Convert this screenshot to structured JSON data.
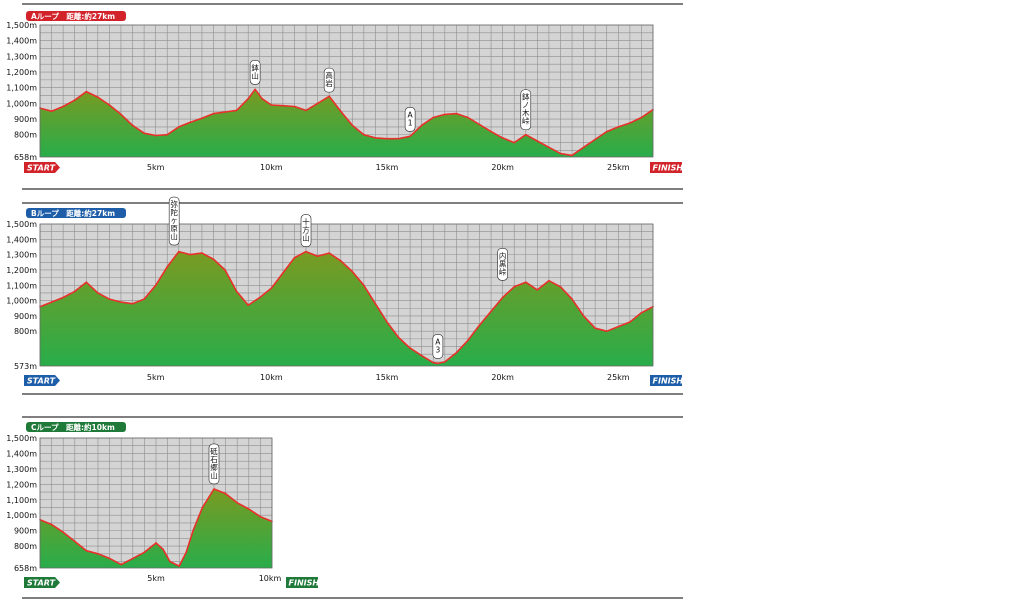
{
  "colors": {
    "loop_a": "#d2232a",
    "loop_b": "#1e5ea8",
    "loop_c": "#1f7a3a",
    "profile_line": "#e8312a",
    "fill_top": "#7a9a22",
    "fill_bottom": "#28ad4a",
    "plot_background": "#d4d4d4"
  },
  "chart_data": [
    {
      "type": "area",
      "title": "Aループ　距離:約27km",
      "xlabel": "",
      "ylabel": "",
      "xlim": [
        0,
        26.5
      ],
      "ylim": [
        658,
        1500
      ],
      "x_tick_labels": [
        "5km",
        "10km",
        "15km",
        "20km",
        "25km"
      ],
      "x_tick_values": [
        5,
        10,
        15,
        20,
        25
      ],
      "y_tick_labels": [
        "1,500m",
        "1,400m",
        "1,300m",
        "1,200m",
        "1,100m",
        "1,000m",
        "900m",
        "800m",
        "658m"
      ],
      "y_tick_values": [
        1500,
        1400,
        1300,
        1200,
        1100,
        1000,
        900,
        800,
        658
      ],
      "start_label": "START",
      "finish_label": "FINISH",
      "annotations": [
        {
          "text": "鉢山",
          "x": 9.3,
          "y": 1090
        },
        {
          "text": "高岩",
          "x": 12.5,
          "y": 1040
        },
        {
          "text": "A1",
          "x": 16.0,
          "y": 790
        },
        {
          "text": "鉢ノ木峠",
          "x": 21.0,
          "y": 800
        }
      ],
      "x": [
        0,
        0.5,
        1,
        1.5,
        2,
        2.5,
        3,
        3.5,
        4,
        4.5,
        5,
        5.5,
        6,
        6.5,
        7,
        7.5,
        8,
        8.5,
        9,
        9.3,
        9.6,
        10,
        10.5,
        11,
        11.5,
        12,
        12.5,
        13,
        13.5,
        14,
        14.5,
        15,
        15.5,
        16,
        16.5,
        17,
        17.5,
        18,
        18.5,
        19,
        19.5,
        20,
        20.5,
        21,
        21.5,
        22,
        22.5,
        23,
        23.5,
        24,
        24.5,
        25,
        25.5,
        26,
        26.5
      ],
      "values": [
        970,
        950,
        980,
        1020,
        1075,
        1040,
        990,
        930,
        860,
        810,
        795,
        800,
        850,
        880,
        905,
        935,
        945,
        955,
        1030,
        1090,
        1030,
        990,
        985,
        980,
        955,
        1000,
        1045,
        950,
        860,
        800,
        780,
        775,
        775,
        790,
        860,
        910,
        930,
        935,
        910,
        865,
        820,
        780,
        750,
        800,
        760,
        720,
        680,
        668,
        720,
        770,
        820,
        850,
        875,
        910,
        960
      ]
    },
    {
      "type": "area",
      "title": "Bループ　距離:約27km",
      "xlabel": "",
      "ylabel": "",
      "xlim": [
        0,
        26.5
      ],
      "ylim": [
        573,
        1500
      ],
      "x_tick_labels": [
        "5km",
        "10km",
        "15km",
        "20km",
        "25km"
      ],
      "x_tick_values": [
        5,
        10,
        15,
        20,
        25
      ],
      "y_tick_labels": [
        "1,500m",
        "1,400m",
        "1,300m",
        "1,200m",
        "1,100m",
        "1,000m",
        "900m",
        "800m",
        "573m"
      ],
      "y_tick_values": [
        1500,
        1400,
        1300,
        1200,
        1100,
        1000,
        900,
        800,
        573
      ],
      "start_label": "START",
      "finish_label": "FINISH",
      "annotations": [
        {
          "text": "弥陀ヶ原山",
          "x": 5.8,
          "y": 1330
        },
        {
          "text": "十方山",
          "x": 11.5,
          "y": 1320
        },
        {
          "text": "A3",
          "x": 17.2,
          "y": 590
        },
        {
          "text": "内黒峠",
          "x": 20.0,
          "y": 1100
        }
      ],
      "x": [
        0,
        0.5,
        1,
        1.5,
        2,
        2.5,
        3,
        3.5,
        4,
        4.5,
        5,
        5.5,
        6,
        6.5,
        7,
        7.5,
        8,
        8.5,
        9,
        9.5,
        10,
        10.5,
        11,
        11.5,
        12,
        12.5,
        13,
        13.5,
        14,
        14.5,
        15,
        15.5,
        16,
        16.5,
        17,
        17.2,
        17.5,
        18,
        18.5,
        19,
        19.5,
        20,
        20.5,
        21,
        21.5,
        22,
        22.5,
        23,
        23.5,
        24,
        24.5,
        25,
        25.5,
        26,
        26.5
      ],
      "values": [
        960,
        990,
        1020,
        1060,
        1120,
        1050,
        1010,
        990,
        980,
        1010,
        1100,
        1220,
        1320,
        1300,
        1310,
        1270,
        1200,
        1060,
        970,
        1020,
        1080,
        1180,
        1280,
        1320,
        1290,
        1310,
        1260,
        1190,
        1100,
        980,
        860,
        760,
        690,
        640,
        595,
        590,
        600,
        660,
        740,
        840,
        930,
        1020,
        1090,
        1120,
        1070,
        1130,
        1090,
        1010,
        900,
        820,
        800,
        830,
        860,
        920,
        960
      ]
    },
    {
      "type": "area",
      "title": "Cループ　距離:約10km",
      "xlabel": "",
      "ylabel": "",
      "xlim": [
        0,
        10
      ],
      "ylim": [
        658,
        1500
      ],
      "x_tick_labels": [
        "5km",
        "10km"
      ],
      "x_tick_values": [
        5,
        10
      ],
      "y_tick_labels": [
        "1,500m",
        "1,400m",
        "1,300m",
        "1,200m",
        "1,100m",
        "1,000m",
        "900m",
        "800m",
        "658m"
      ],
      "y_tick_values": [
        1500,
        1400,
        1300,
        1200,
        1100,
        1000,
        900,
        800,
        658
      ],
      "start_label": "START",
      "finish_label": "FINISH",
      "annotations": [
        {
          "text": "砥石郷山",
          "x": 7.5,
          "y": 1170
        }
      ],
      "x": [
        0,
        0.5,
        1,
        1.5,
        2,
        2.5,
        3,
        3.5,
        4,
        4.5,
        5,
        5.3,
        5.6,
        6,
        6.3,
        6.6,
        7,
        7.5,
        8,
        8.5,
        9,
        9.5,
        10
      ],
      "values": [
        970,
        940,
        890,
        830,
        770,
        750,
        720,
        680,
        720,
        760,
        820,
        780,
        700,
        670,
        760,
        900,
        1050,
        1170,
        1140,
        1080,
        1040,
        990,
        960
      ]
    }
  ]
}
